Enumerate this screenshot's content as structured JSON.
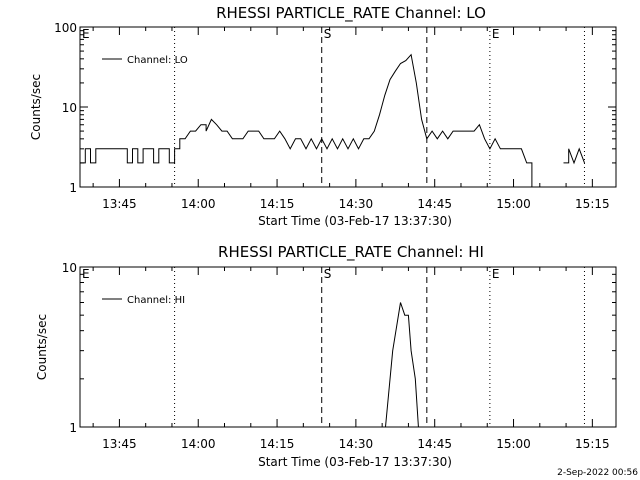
{
  "footer_date": "2-Sep-2022 00:56",
  "chart_data": [
    {
      "type": "line",
      "title": "RHESSI PARTICLE_RATE Channel: LO",
      "xlabel": "Start Time (03-Feb-17 13:37:30)",
      "ylabel": "Counts/sec",
      "yscale": "log",
      "ylim": [
        1,
        100
      ],
      "xlim_minutes": [
        0,
        102
      ],
      "x_tick_labels": [
        "13:45",
        "14:00",
        "14:15",
        "14:30",
        "14:45",
        "15:00",
        "15:15"
      ],
      "x_tick_minutes": [
        7.5,
        22.5,
        37.5,
        52.5,
        67.5,
        82.5,
        97.5
      ],
      "y_tick_labels": [
        "1",
        "10",
        "100"
      ],
      "y_tick_values": [
        1,
        10,
        100
      ],
      "legend": "Channel: LO",
      "legend_position": "top-left",
      "markers": [
        {
          "label": "E",
          "t_min": 0,
          "style": "none"
        },
        {
          "label": "",
          "t_min": 18,
          "style": "dotted"
        },
        {
          "label": "S",
          "t_min": 46,
          "style": "dashed"
        },
        {
          "label": "",
          "t_min": 66,
          "style": "dashed"
        },
        {
          "label": "E",
          "t_min": 78,
          "style": "dotted"
        },
        {
          "label": "",
          "t_min": 96,
          "style": "dotted"
        }
      ],
      "series": [
        {
          "segments": [
            [
              [
                0,
                2
              ],
              [
                1,
                2
              ],
              [
                1,
                3
              ],
              [
                2,
                3
              ],
              [
                2,
                2
              ],
              [
                3,
                2
              ],
              [
                3,
                3
              ],
              [
                9,
                3
              ],
              [
                9,
                2
              ],
              [
                10,
                2
              ],
              [
                10,
                3
              ],
              [
                11,
                3
              ],
              [
                11,
                2
              ],
              [
                12,
                2
              ],
              [
                12,
                3
              ],
              [
                14,
                3
              ],
              [
                14,
                2
              ],
              [
                15,
                2
              ],
              [
                15,
                3
              ],
              [
                17,
                3
              ],
              [
                17,
                2
              ],
              [
                18,
                2
              ],
              [
                18,
                3
              ],
              [
                19,
                3
              ],
              [
                19,
                4
              ],
              [
                20,
                4
              ],
              [
                21,
                5
              ],
              [
                22,
                5
              ],
              [
                23,
                6
              ],
              [
                24,
                6
              ],
              [
                24,
                5
              ],
              [
                25,
                7
              ],
              [
                26,
                6
              ],
              [
                27,
                5
              ],
              [
                28,
                5
              ],
              [
                29,
                4
              ],
              [
                30,
                4
              ],
              [
                31,
                4
              ],
              [
                32,
                5
              ],
              [
                34,
                5
              ],
              [
                35,
                4
              ],
              [
                36,
                4
              ],
              [
                37,
                4
              ],
              [
                38,
                5
              ],
              [
                39,
                4
              ],
              [
                40,
                3
              ],
              [
                41,
                4
              ],
              [
                42,
                4
              ],
              [
                43,
                3
              ],
              [
                44,
                4
              ],
              [
                45,
                3
              ],
              [
                46,
                4
              ],
              [
                47,
                3
              ],
              [
                48,
                4
              ],
              [
                49,
                3
              ],
              [
                50,
                4
              ],
              [
                51,
                3
              ],
              [
                52,
                4
              ],
              [
                53,
                3
              ],
              [
                54,
                4
              ],
              [
                55,
                4
              ],
              [
                56,
                5
              ],
              [
                57,
                8
              ],
              [
                58,
                14
              ],
              [
                59,
                22
              ],
              [
                60,
                28
              ],
              [
                61,
                35
              ],
              [
                62,
                38
              ],
              [
                63,
                45
              ],
              [
                64,
                20
              ],
              [
                65,
                7
              ],
              [
                66,
                4
              ],
              [
                67,
                5
              ],
              [
                68,
                4
              ],
              [
                69,
                5
              ],
              [
                70,
                4
              ],
              [
                71,
                5
              ],
              [
                75,
                5
              ],
              [
                76,
                6
              ],
              [
                77,
                4
              ],
              [
                78,
                3
              ],
              [
                79,
                4
              ],
              [
                80,
                3
              ],
              [
                81,
                3
              ],
              [
                82,
                3
              ],
              [
                84,
                3
              ],
              [
                85,
                2
              ],
              [
                86,
                2
              ],
              [
                86,
                1
              ]
            ],
            [
              [
                92,
                2
              ],
              [
                93,
                2
              ],
              [
                93,
                3
              ],
              [
                94,
                2
              ],
              [
                95,
                3
              ],
              [
                96,
                2
              ]
            ]
          ]
        }
      ]
    },
    {
      "type": "line",
      "title": "RHESSI PARTICLE_RATE Channel: HI",
      "xlabel": "Start Time (03-Feb-17 13:37:30)",
      "ylabel": "Counts/sec",
      "yscale": "log",
      "ylim": [
        1,
        10
      ],
      "xlim_minutes": [
        0,
        102
      ],
      "x_tick_labels": [
        "13:45",
        "14:00",
        "14:15",
        "14:30",
        "14:45",
        "15:00",
        "15:15"
      ],
      "x_tick_minutes": [
        7.5,
        22.5,
        37.5,
        52.5,
        67.5,
        82.5,
        97.5
      ],
      "y_tick_labels": [
        "1",
        "10"
      ],
      "y_tick_values": [
        1,
        10
      ],
      "legend": "Channel: HI",
      "legend_position": "top-left",
      "markers": [
        {
          "label": "E",
          "t_min": 0,
          "style": "none"
        },
        {
          "label": "",
          "t_min": 18,
          "style": "dotted"
        },
        {
          "label": "S",
          "t_min": 46,
          "style": "dashed"
        },
        {
          "label": "",
          "t_min": 66,
          "style": "dashed"
        },
        {
          "label": "E",
          "t_min": 78,
          "style": "dotted"
        },
        {
          "label": "",
          "t_min": 96,
          "style": "dotted"
        }
      ],
      "series": [
        {
          "segments": [
            [
              [
                58,
                0.9
              ],
              [
                59.5,
                3.0
              ],
              [
                61,
                6.0
              ],
              [
                61.8,
                5.0
              ],
              [
                62.5,
                5.0
              ],
              [
                63,
                3.0
              ],
              [
                63.8,
                2.0
              ],
              [
                64.5,
                0.9
              ]
            ]
          ]
        }
      ]
    }
  ]
}
